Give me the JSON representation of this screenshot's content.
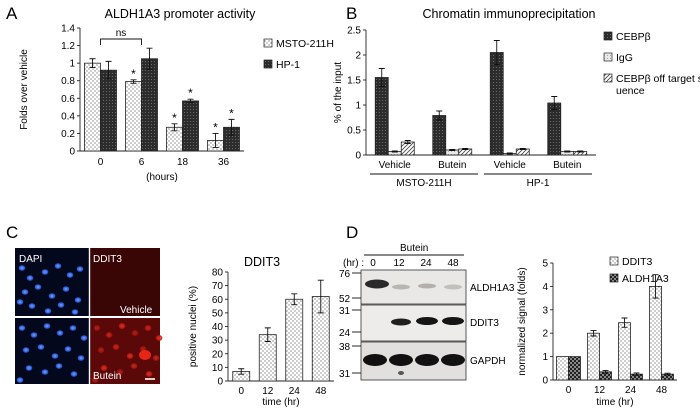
{
  "panels": {
    "a": "A",
    "b": "B",
    "c": "C",
    "d": "D"
  },
  "chart_data": [
    {
      "type": "bar",
      "title": "ALDH1A3 promoter activity",
      "ylabel": "Folds over vehicle",
      "xlabel": "(hours)",
      "categories": [
        "0",
        "6",
        "18",
        "36"
      ],
      "ylim": [
        0,
        1.4
      ],
      "yticks": [
        "0",
        "0.2",
        "0.4",
        "0.6",
        "0.8",
        "1",
        "1.2",
        "1.4"
      ],
      "series": [
        {
          "name": "MSTO-211H",
          "values": [
            1.0,
            0.79,
            0.27,
            0.12
          ],
          "errors": [
            0.05,
            0.02,
            0.04,
            0.08
          ],
          "pattern": "dots",
          "star": [
            false,
            true,
            true,
            true
          ]
        },
        {
          "name": "HP-1",
          "values": [
            0.92,
            1.05,
            0.57,
            0.27
          ],
          "errors": [
            0.1,
            0.12,
            0.02,
            0.09
          ],
          "pattern": "dark",
          "star": [
            false,
            false,
            true,
            true
          ]
        }
      ],
      "annotations": [
        "ns",
        "*"
      ],
      "legend": "right"
    },
    {
      "type": "bar",
      "title": "Chromatin immunoprecipitation",
      "ylabel": "% of the input",
      "categories": [
        "Vehicle",
        "Butein",
        "Vehicle",
        "Butein"
      ],
      "groups": [
        "MSTO-211H",
        "HP-1"
      ],
      "ylim": [
        0,
        2.5
      ],
      "yticks": [
        "0",
        "0.5",
        "1",
        "1.5",
        "2",
        "2.5"
      ],
      "series": [
        {
          "name": "CEBPβ",
          "values": [
            1.55,
            0.79,
            2.05,
            1.04
          ],
          "errors": [
            0.18,
            0.09,
            0.24,
            0.13
          ],
          "pattern": "dark"
        },
        {
          "name": "IgG",
          "values": [
            0.07,
            0.1,
            0.03,
            0.07
          ],
          "errors": [
            0.01,
            0.01,
            0.01,
            0.01
          ],
          "pattern": "light"
        },
        {
          "name": "CEBPβ off target sequence",
          "values": [
            0.26,
            0.12,
            0.12,
            0.07
          ],
          "errors": [
            0.03,
            0.01,
            0.01,
            0.01
          ],
          "pattern": "diag"
        }
      ],
      "legend": "right"
    },
    {
      "type": "bar",
      "title": "DDIT3",
      "ylabel": "positive nuclei (%)",
      "xlabel": "time (hr)",
      "categories": [
        "0",
        "12",
        "24",
        "48"
      ],
      "ylim": [
        0,
        80
      ],
      "yticks": [
        "0",
        "10",
        "20",
        "30",
        "40",
        "50",
        "60",
        "70",
        "80"
      ],
      "series": [
        {
          "name": "",
          "values": [
            7,
            34,
            60,
            62
          ],
          "errors": [
            2,
            5,
            4,
            12
          ],
          "pattern": "dots"
        }
      ]
    },
    {
      "type": "bar",
      "ylabel": "normalized signal (folds)",
      "xlabel": "time (hr)",
      "categories": [
        "0",
        "12",
        "24",
        "48"
      ],
      "ylim": [
        0,
        5
      ],
      "yticks": [
        "0",
        "1",
        "2",
        "3",
        "4",
        "5"
      ],
      "series": [
        {
          "name": "DDIT3",
          "values": [
            1.0,
            2.0,
            2.45,
            4.0
          ],
          "errors": [
            0.0,
            0.12,
            0.2,
            0.5
          ],
          "pattern": "dots"
        },
        {
          "name": "ALDH1A3",
          "values": [
            1.0,
            0.35,
            0.25,
            0.25
          ],
          "errors": [
            0.0,
            0.06,
            0.05,
            0.04
          ],
          "pattern": "check"
        }
      ],
      "legend": "top-right"
    }
  ],
  "microscopy": {
    "dapi_label": "DAPI",
    "ddit3_label": "DDIT3",
    "vehicle_label": "Vehicle",
    "butein_label": "Butein"
  },
  "blot": {
    "treatment": "Butein",
    "hr_label": "(hr) :",
    "lanes": [
      "0",
      "12",
      "24",
      "48"
    ],
    "bands": [
      "ALDH1A3",
      "DDIT3",
      "GAPDH"
    ],
    "markers": [
      "76",
      "52",
      "31",
      "24",
      "38",
      "31"
    ]
  }
}
